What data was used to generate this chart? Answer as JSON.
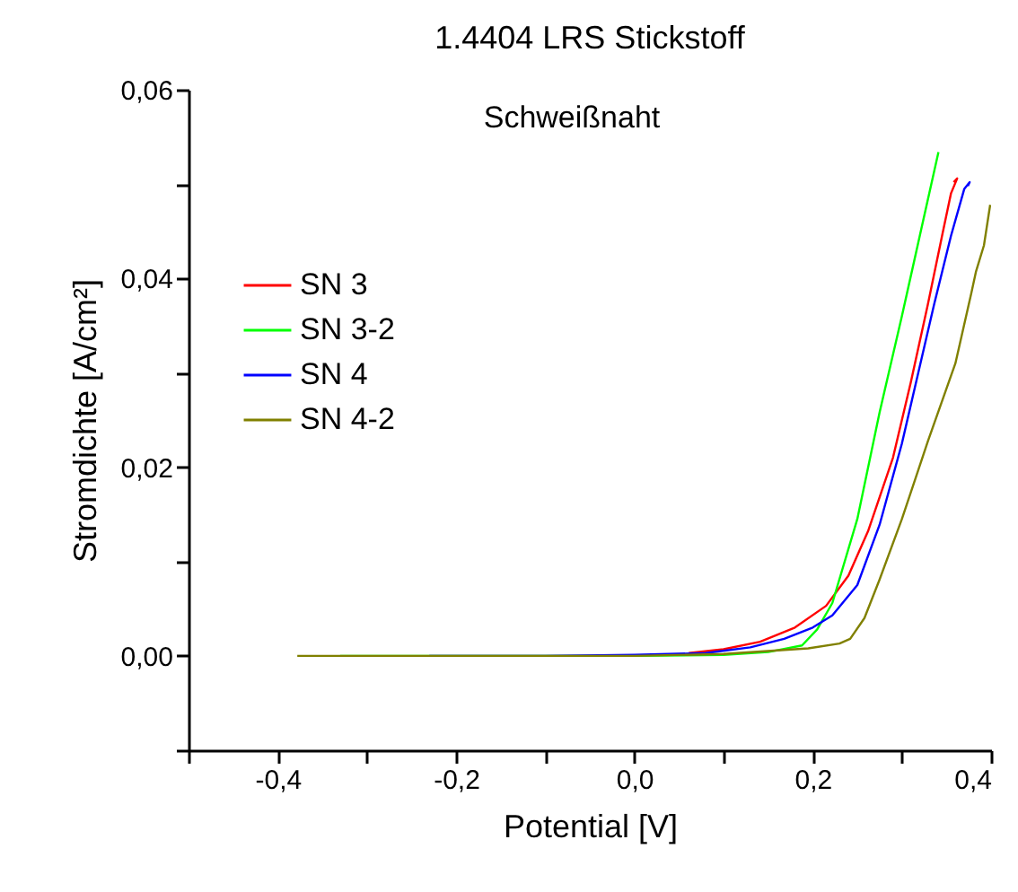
{
  "chart_data": {
    "type": "line",
    "title": "1.4404 LRS Stickstoff",
    "xlabel": "Potential [V]",
    "ylabel": "Stromdichte [A/cm²]",
    "annotations": [
      "Schweißnaht"
    ],
    "xlim": [
      -0.5,
      0.4
    ],
    "ylim": [
      -0.01,
      0.06
    ],
    "xticks": [
      {
        "value": -0.5,
        "label": null
      },
      {
        "value": -0.4,
        "label": "-0,4"
      },
      {
        "value": -0.3,
        "label": null
      },
      {
        "value": -0.2,
        "label": "-0,2"
      },
      {
        "value": -0.1,
        "label": null
      },
      {
        "value": 0,
        "label": "0,0"
      },
      {
        "value": 0.1,
        "label": null
      },
      {
        "value": 0.2,
        "label": "0,2"
      },
      {
        "value": 0.3,
        "label": null
      },
      {
        "value": 0.4,
        "label": "0,4"
      }
    ],
    "yticks": [
      {
        "value": -0.01,
        "label": null
      },
      {
        "value": 0,
        "label": "0,00"
      },
      {
        "value": 0.01,
        "label": null
      },
      {
        "value": 0.02,
        "label": "0,02"
      },
      {
        "value": 0.03,
        "label": null
      },
      {
        "value": 0.04,
        "label": "0,04"
      },
      {
        "value": 0.05,
        "label": null
      },
      {
        "value": 0.06,
        "label": "0,06"
      }
    ],
    "grid": false,
    "legend": "top left",
    "marker": "none",
    "line_style": "solid",
    "series": [
      {
        "name": "SN 3",
        "color": "#ff0000",
        "x": [
          0.061,
          0.1,
          0.141,
          0.18,
          0.215,
          0.24,
          0.262,
          0.29,
          0.31,
          0.329,
          0.345,
          0.355,
          0.362,
          0.358
        ],
        "values": [
          0.0003,
          0.0007,
          0.0015,
          0.003,
          0.0053,
          0.0085,
          0.0132,
          0.021,
          0.029,
          0.0372,
          0.0445,
          0.049,
          0.0506,
          0.0502
        ]
      },
      {
        "name": "SN 3-2",
        "color": "#00ff00",
        "x": [
          -0.33,
          -0.2,
          0.0,
          0.1,
          0.15,
          0.188,
          0.205,
          0.222,
          0.25,
          0.275,
          0.3,
          0.32,
          0.341
        ],
        "values": [
          0.0,
          0.0,
          0.0,
          0.0001,
          0.0004,
          0.0011,
          0.0028,
          0.0056,
          0.0145,
          0.0258,
          0.036,
          0.0445,
          0.0534
        ]
      },
      {
        "name": "SN 4",
        "color": "#0000ff",
        "x": [
          -0.23,
          -0.1,
          0.0,
          0.08,
          0.13,
          0.168,
          0.2,
          0.222,
          0.25,
          0.275,
          0.3,
          0.336,
          0.355,
          0.37,
          0.376,
          0.374
        ],
        "values": [
          0.0,
          0.0,
          0.0001,
          0.0003,
          0.0009,
          0.0018,
          0.003,
          0.0043,
          0.0075,
          0.0139,
          0.0225,
          0.0372,
          0.0445,
          0.0495,
          0.0502,
          0.0498
        ]
      },
      {
        "name": "SN 4-2",
        "color": "#808000",
        "x": [
          -0.378,
          -0.2,
          0.0,
          0.1,
          0.195,
          0.23,
          0.242,
          0.258,
          0.275,
          0.3,
          0.329,
          0.36,
          0.378,
          0.383,
          0.392,
          0.399
        ],
        "values": [
          0.0,
          0.0,
          0.0,
          0.0002,
          0.0008,
          0.0013,
          0.0018,
          0.004,
          0.0081,
          0.0145,
          0.0227,
          0.031,
          0.0385,
          0.0407,
          0.0435,
          0.0478
        ]
      }
    ]
  }
}
